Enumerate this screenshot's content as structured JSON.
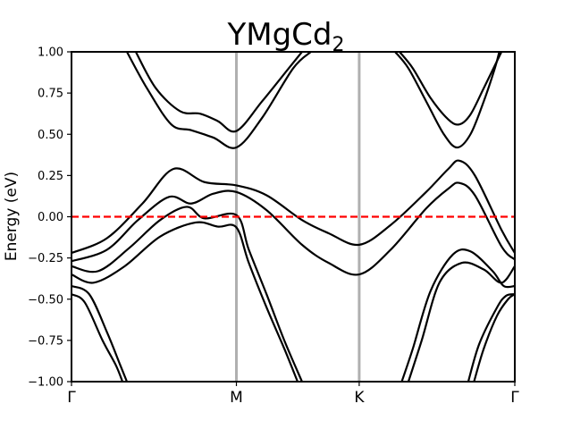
{
  "chart_data": {
    "type": "line",
    "title": "YMgCd",
    "title_subscript": "2",
    "xlabel": "",
    "ylabel": "Energy (eV)",
    "ylim": [
      -1.0,
      1.0
    ],
    "yticks": [
      "1.00",
      "0.75",
      "0.50",
      "0.25",
      "0.00",
      "−0.25",
      "−0.50",
      "−0.75",
      "−1.00"
    ],
    "ytick_values": [
      1.0,
      0.75,
      0.5,
      0.25,
      0.0,
      -0.25,
      -0.5,
      -0.75,
      -1.0
    ],
    "xlim": [
      0,
      1.0
    ],
    "high_symmetry_points": [
      {
        "label": "Γ",
        "x": 0.0
      },
      {
        "label": "M",
        "x": 0.372
      },
      {
        "label": "K",
        "x": 0.649
      },
      {
        "label": "Γ",
        "x": 1.0
      }
    ],
    "fermi_level": 0.0,
    "colors": {
      "bands": "#000000",
      "fermi": "#ff0000",
      "vlines": "#b0b0b0"
    },
    "series": [
      {
        "values": [
          [
            0.145,
            1.0
          ],
          [
            0.19,
            0.78
          ],
          [
            0.245,
            0.64
          ],
          [
            0.29,
            0.625
          ],
          [
            0.33,
            0.58
          ],
          [
            0.372,
            0.52
          ],
          [
            0.43,
            0.7
          ],
          [
            0.49,
            0.9
          ],
          [
            0.52,
            1.0
          ]
        ]
      },
      {
        "values": [
          [
            0.125,
            1.0
          ],
          [
            0.17,
            0.78
          ],
          [
            0.225,
            0.56
          ],
          [
            0.27,
            0.525
          ],
          [
            0.32,
            0.48
          ],
          [
            0.372,
            0.42
          ],
          [
            0.43,
            0.6
          ],
          [
            0.5,
            0.9
          ],
          [
            0.54,
            1.0
          ]
        ]
      },
      {
        "values": [
          [
            0.74,
            1.0
          ],
          [
            0.77,
            0.9
          ],
          [
            0.81,
            0.72
          ],
          [
            0.85,
            0.59
          ],
          [
            0.875,
            0.56
          ],
          [
            0.9,
            0.62
          ],
          [
            0.93,
            0.78
          ],
          [
            0.97,
            1.0
          ]
        ]
      },
      {
        "values": [
          [
            0.73,
            1.0
          ],
          [
            0.76,
            0.9
          ],
          [
            0.8,
            0.7
          ],
          [
            0.84,
            0.5
          ],
          [
            0.87,
            0.42
          ],
          [
            0.9,
            0.5
          ],
          [
            0.93,
            0.7
          ],
          [
            0.955,
            0.9
          ],
          [
            0.965,
            1.0
          ]
        ]
      },
      {
        "values": [
          [
            0.0,
            -0.22
          ],
          [
            0.08,
            -0.13
          ],
          [
            0.16,
            0.08
          ],
          [
            0.23,
            0.29
          ],
          [
            0.3,
            0.21
          ],
          [
            0.372,
            0.19
          ],
          [
            0.44,
            0.13
          ],
          [
            0.52,
            -0.02
          ],
          [
            0.58,
            -0.1
          ],
          [
            0.649,
            -0.17
          ],
          [
            0.72,
            -0.05
          ],
          [
            0.8,
            0.15
          ],
          [
            0.85,
            0.29
          ],
          [
            0.875,
            0.34
          ],
          [
            0.91,
            0.25
          ],
          [
            0.97,
            -0.08
          ],
          [
            1.0,
            -0.22
          ]
        ]
      },
      {
        "values": [
          [
            0.0,
            -0.27
          ],
          [
            0.08,
            -0.2
          ],
          [
            0.15,
            -0.02
          ],
          [
            0.22,
            0.12
          ],
          [
            0.27,
            0.08
          ],
          [
            0.32,
            0.14
          ],
          [
            0.372,
            0.15
          ],
          [
            0.44,
            0.04
          ],
          [
            0.52,
            -0.17
          ],
          [
            0.58,
            -0.28
          ],
          [
            0.649,
            -0.35
          ],
          [
            0.72,
            -0.2
          ],
          [
            0.8,
            0.05
          ],
          [
            0.85,
            0.17
          ],
          [
            0.875,
            0.205
          ],
          [
            0.91,
            0.13
          ],
          [
            0.97,
            -0.18
          ],
          [
            1.0,
            -0.26
          ]
        ]
      },
      {
        "values": [
          [
            0.0,
            -0.3
          ],
          [
            0.06,
            -0.33
          ],
          [
            0.13,
            -0.19
          ],
          [
            0.2,
            -0.02
          ],
          [
            0.26,
            0.06
          ],
          [
            0.3,
            -0.01
          ],
          [
            0.372,
            0.01
          ],
          [
            0.4,
            -0.2
          ],
          [
            0.44,
            -0.47
          ],
          [
            0.48,
            -0.75
          ],
          [
            0.52,
            -1.0
          ]
        ]
      },
      {
        "values": [
          [
            0.0,
            -0.35
          ],
          [
            0.05,
            -0.4
          ],
          [
            0.12,
            -0.3
          ],
          [
            0.2,
            -0.12
          ],
          [
            0.28,
            -0.035
          ],
          [
            0.33,
            -0.06
          ],
          [
            0.372,
            -0.065
          ],
          [
            0.4,
            -0.28
          ],
          [
            0.44,
            -0.55
          ],
          [
            0.48,
            -0.8
          ],
          [
            0.51,
            -1.0
          ]
        ]
      },
      {
        "values": [
          [
            0.0,
            -0.42
          ],
          [
            0.04,
            -0.47
          ],
          [
            0.08,
            -0.7
          ],
          [
            0.11,
            -0.9
          ],
          [
            0.125,
            -1.0
          ]
        ]
      },
      {
        "values": [
          [
            0.0,
            -0.47
          ],
          [
            0.03,
            -0.52
          ],
          [
            0.07,
            -0.75
          ],
          [
            0.1,
            -0.9
          ],
          [
            0.115,
            -1.0
          ]
        ]
      },
      {
        "values": [
          [
            0.745,
            -1.0
          ],
          [
            0.77,
            -0.8
          ],
          [
            0.81,
            -0.45
          ],
          [
            0.86,
            -0.23
          ],
          [
            0.9,
            -0.21
          ],
          [
            0.95,
            -0.33
          ],
          [
            0.975,
            -0.42
          ],
          [
            1.0,
            -0.42
          ]
        ]
      },
      {
        "values": [
          [
            0.76,
            -1.0
          ],
          [
            0.79,
            -0.75
          ],
          [
            0.83,
            -0.4
          ],
          [
            0.88,
            -0.28
          ],
          [
            0.93,
            -0.32
          ],
          [
            0.97,
            -0.4
          ],
          [
            1.0,
            -0.3
          ]
        ]
      },
      {
        "values": [
          [
            0.895,
            -1.0
          ],
          [
            0.92,
            -0.77
          ],
          [
            0.96,
            -0.55
          ],
          [
            0.98,
            -0.48
          ],
          [
            1.0,
            -0.47
          ]
        ]
      },
      {
        "values": [
          [
            0.908,
            -1.0
          ],
          [
            0.93,
            -0.8
          ],
          [
            0.96,
            -0.6
          ],
          [
            0.985,
            -0.5
          ],
          [
            1.0,
            -0.47
          ]
        ]
      }
    ]
  }
}
